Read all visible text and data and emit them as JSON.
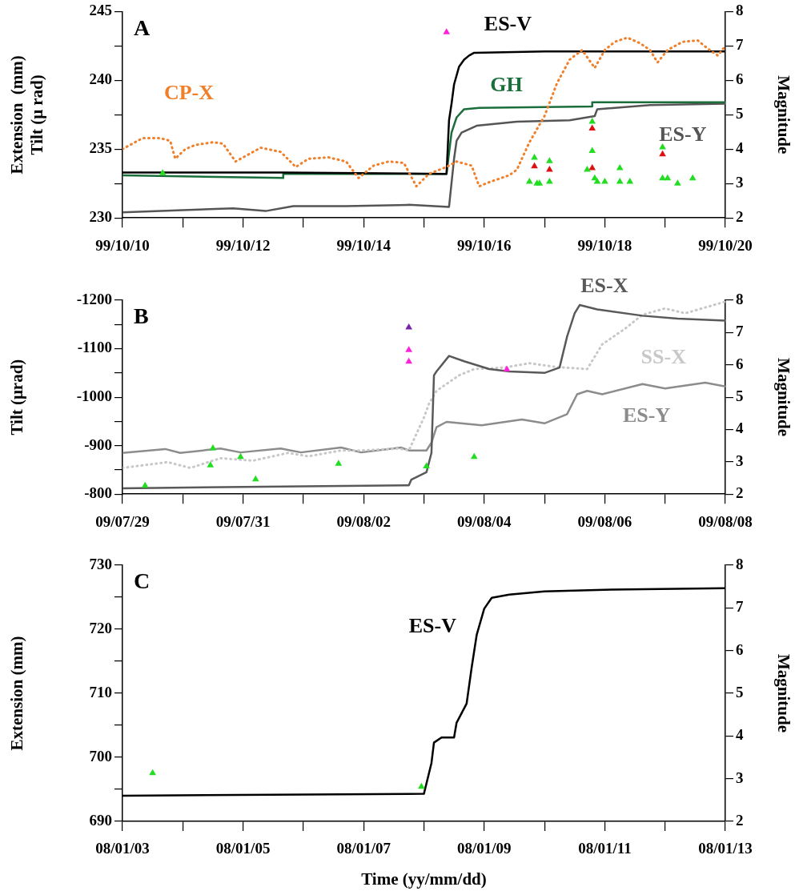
{
  "chart_data": [
    {
      "type": "line",
      "ylabel": "Extension  (mm)\nTilt (μ rad)",
      "y2label": "Magnitude",
      "annotations": [
        "A"
      ],
      "xlim": [
        "--10-10",
        "--10-20"
      ],
      "xticks": [
        {
          "value": "--10-10",
          "label": "99/10/10"
        },
        {
          "value": "--10-11",
          "label": null
        },
        {
          "value": "--10-12",
          "label": "99/10/12"
        },
        {
          "value": "--10-13",
          "label": null
        },
        {
          "value": "--10-14",
          "label": "99/10/14"
        },
        {
          "value": "--10-15",
          "label": null
        },
        {
          "value": "--10-16",
          "label": "99/10/16"
        },
        {
          "value": "--10-17",
          "label": null
        },
        {
          "value": "--10-18",
          "label": "99/10/18"
        },
        {
          "value": "--10-19",
          "label": null
        },
        {
          "value": "--10-20",
          "label": "99/10/20"
        }
      ],
      "ylim": [
        230,
        245
      ],
      "yticks": [
        230,
        {
          "value": 232.5,
          "label": null
        },
        235,
        {
          "value": 237.5,
          "label": null
        },
        240,
        {
          "value": 242.5,
          "label": null
        },
        245
      ],
      "y2lim": [
        2,
        8
      ],
      "y2ticks": [
        2,
        3,
        4,
        5,
        6,
        7,
        8
      ],
      "series": [
        {
          "name": "CP-X",
          "color": "#f07f2a",
          "line_style": "dotted",
          "marker": "none",
          "x": [
            "--10-10T00:00",
            "--10-10T08:00",
            "--10-10T15:00",
            "--10-10T19:00",
            "--10-10T21:00",
            "--10-11T01:00",
            "--10-11T05:00",
            "--10-11T12:00",
            "--10-11T16:00",
            "--10-11T21:00",
            "--10-12T03:00",
            "--10-12T07:00",
            "--10-12T15:00",
            "--10-12T21:00",
            "--10-13T02:00",
            "--10-13T10:00",
            "--10-13T17:00",
            "--10-13T22:00",
            "--10-14T04:00",
            "--10-14T10:00",
            "--10-14T16:00",
            "--10-14T21:00",
            "--10-15T02:00",
            "--10-15T09:00",
            "--10-15T13:00",
            "--10-15T19:00",
            "--10-15T22:00",
            "--10-16T02:00",
            "--10-16T10:00",
            "--10-16T13:00",
            "--10-16T18:00",
            "--10-17T00:00",
            "--10-17T05:00",
            "--10-17T10:00",
            "--10-17T15:00",
            "--10-17T20:00",
            "--10-18T00:00",
            "--10-18T04:00",
            "--10-18T09:00",
            "--10-18T14:00",
            "--10-18T18:00",
            "--10-18T21:00",
            "--10-19T01:00",
            "--10-19T07:00",
            "--10-19T13:00",
            "--10-19T17:00",
            "--10-19T21:00",
            "--10-20T00:00"
          ],
          "values": [
            235.0,
            235.8,
            235.8,
            235.6,
            234.3,
            235.0,
            235.3,
            235.5,
            235.4,
            234.1,
            234.7,
            235.1,
            234.8,
            233.7,
            234.3,
            234.4,
            234.1,
            232.9,
            233.8,
            234.1,
            234.0,
            232.3,
            233.2,
            233.7,
            234.1,
            233.8,
            232.3,
            232.6,
            233.1,
            233.5,
            235.5,
            237.4,
            239.8,
            241.5,
            242.2,
            240.9,
            242.2,
            242.8,
            243.1,
            242.7,
            242.2,
            241.3,
            242.2,
            242.8,
            242.9,
            242.3,
            241.8,
            242.5
          ]
        },
        {
          "name": "ES-V",
          "color": "#000000",
          "marker": "none",
          "x": [
            "--10-10T00:00",
            "--10-12T16:00",
            "--10-15T09:00",
            "--10-15T10:00",
            "--10-15T11:00",
            "--10-15T12:00",
            "--10-15T14:00",
            "--10-15T16:00",
            "--10-15T18:00",
            "--10-15T20:00",
            "--10-17T00:00",
            "--10-20T00:00"
          ],
          "values": [
            233.3,
            233.3,
            233.2,
            237.1,
            238.3,
            239.7,
            241.0,
            241.5,
            241.8,
            242.0,
            242.1,
            242.1
          ]
        },
        {
          "name": "GH",
          "color": "#1a6e3a",
          "marker": "none",
          "x": [
            "--10-10T00:00",
            "--10-12T16:00",
            "--10-12T16:00",
            "--10-15T09:00",
            "--10-15T10:00",
            "--10-15T11:00",
            "--10-15T13:00",
            "--10-15T16:00",
            "--10-15T22:00",
            "--10-17T19:00",
            "--10-17T19:00",
            "--10-20T00:00"
          ],
          "values": [
            233.1,
            232.9,
            233.2,
            233.2,
            234.7,
            236.2,
            237.3,
            237.9,
            238.0,
            238.1,
            238.4,
            238.4
          ]
        },
        {
          "name": "ES-Y",
          "color": "#555555",
          "marker": "none",
          "x": [
            "--10-10T00:00",
            "--10-11T20:00",
            "--10-12T09:00",
            "--10-12T20:00",
            "--10-13T17:00",
            "--10-14T18:00",
            "--10-15T10:00",
            "--10-15T12:00",
            "--10-15T13:00",
            "--10-15T15:00",
            "--10-15T21:00",
            "--10-16T13:00",
            "--10-17T10:00",
            "--10-17T20:00",
            "--10-17T21:00",
            "--10-18T18:00",
            "--10-20T00:00"
          ],
          "values": [
            230.4,
            230.7,
            230.5,
            230.85,
            230.85,
            230.95,
            230.8,
            234.3,
            235.6,
            236.2,
            236.7,
            237.0,
            237.1,
            237.4,
            237.9,
            238.2,
            238.3
          ]
        },
        {
          "type": "scatter",
          "axis": "y2",
          "color": "#22dd22",
          "marker": "triangle",
          "x": [
            "--10-10T16:00",
            "--10-16T18:00",
            "--10-16T20:00",
            "--10-16T21:00",
            "--10-16T22:00",
            "--10-17T02:00",
            "--10-17T02:00",
            "--10-17T17:00",
            "--10-17T19:00",
            "--10-17T19:00",
            "--10-17T20:00",
            "--10-17T21:00",
            "--10-18T00:00",
            "--10-18T06:00",
            "--10-18T06:00",
            "--10-18T10:00",
            "--10-18T23:00",
            "--10-18T23:00",
            "--10-19T01:00",
            "--10-19T05:00",
            "--10-19T11:00"
          ],
          "values": [
            3.3,
            3.05,
            3.75,
            3.0,
            3.0,
            3.65,
            3.05,
            3.4,
            4.8,
            3.95,
            3.15,
            3.05,
            3.05,
            3.45,
            3.05,
            3.05,
            4.05,
            3.15,
            3.15,
            3.0,
            3.15
          ]
        },
        {
          "type": "scatter",
          "axis": "y2",
          "color": "#dd1111",
          "marker": "triangle",
          "x": [
            "--10-16T20:00",
            "--10-17T02:00",
            "--10-17T19:00",
            "--10-17T19:00",
            "--10-18T23:00"
          ],
          "values": [
            3.5,
            3.4,
            4.6,
            3.45,
            3.85
          ]
        },
        {
          "type": "scatter",
          "axis": "y2",
          "color": "#ff22dd",
          "marker": "triangle",
          "x": [
            "--10-15T09:00"
          ],
          "values": [
            7.4
          ]
        }
      ]
    },
    {
      "type": "line",
      "ylabel": "Tilt (μrad)",
      "y2label": "Magnitude",
      "annotations": [
        "B"
      ],
      "xlim": [
        "--07-29",
        "--08-08"
      ],
      "xticks": [
        {
          "value": "--07-29",
          "label": "09/07/29"
        },
        {
          "value": "--07-30",
          "label": null
        },
        {
          "value": "--07-31",
          "label": "09/07/31"
        },
        {
          "value": "--08-01",
          "label": null
        },
        {
          "value": "--08-02",
          "label": "09/08/02"
        },
        {
          "value": "--08-03",
          "label": null
        },
        {
          "value": "--08-04",
          "label": "09/08/04"
        },
        {
          "value": "--08-05",
          "label": null
        },
        {
          "value": "--08-06",
          "label": "09/08/06"
        },
        {
          "value": "--08-07",
          "label": null
        },
        {
          "value": "--08-08",
          "label": "09/08/08"
        }
      ],
      "ylim": [
        -800,
        -1200
      ],
      "yticks": [
        -800,
        {
          "value": -850,
          "label": null
        },
        -900,
        {
          "value": -950,
          "label": null
        },
        -1000,
        {
          "value": -1050,
          "label": null
        },
        -1100,
        {
          "value": -1150,
          "label": null
        },
        -1200
      ],
      "y2lim": [
        2,
        8
      ],
      "y2ticks": [
        2,
        3,
        4,
        5,
        6,
        7,
        8
      ],
      "series": [
        {
          "name": "ES-X",
          "color": "#595959",
          "marker": "none",
          "x": [
            "--07-29T00:00",
            "--08-01T00:00",
            "--08-02T17:00",
            "--08-02T18:00",
            "--08-02T19:00",
            "--08-03T01:00",
            "--08-03T03:00",
            "--08-03T04:00",
            "--08-03T05:00",
            "--08-03T10:00",
            "--08-03T16:00",
            "--08-04T02:00",
            "--08-04T10:00",
            "--08-05T00:00",
            "--08-05T06:00",
            "--08-05T09:00",
            "--08-05T12:00",
            "--08-05T14:00",
            "--08-05T21:00",
            "--08-06T15:00",
            "--08-07T05:00",
            "--08-08T00:00"
          ],
          "values": [
            -812,
            -816,
            -818,
            -818,
            -830,
            -845,
            -885,
            -1045,
            -1053,
            -1085,
            -1074,
            -1058,
            -1053,
            -1050,
            -1061,
            -1125,
            -1173,
            -1190,
            -1181,
            -1168,
            -1162,
            -1158
          ]
        },
        {
          "name": "SS-X",
          "color": "#c8c8c8",
          "line_style": "dotted",
          "marker": "none",
          "x": [
            "--07-29T00:00",
            "--07-29T18:00",
            "--07-30T03:00",
            "--07-30T15:00",
            "--07-31T04:00",
            "--07-31T18:00",
            "--08-01T02:00",
            "--08-01T15:00",
            "--08-01T23:00",
            "--08-02T14:00",
            "--08-02T18:00",
            "--08-03T00:00",
            "--08-03T02:00",
            "--08-03T05:00",
            "--08-03T14:00",
            "--08-03T20:00",
            "--08-04T08:00",
            "--08-04T18:00",
            "--08-05T05:00",
            "--08-05T17:00",
            "--08-05T23:00",
            "--08-06T08:00",
            "--08-06T15:00",
            "--08-07T00:00",
            "--08-07T08:00",
            "--08-08T00:00"
          ],
          "values": [
            -854,
            -866,
            -854,
            -874,
            -869,
            -885,
            -878,
            -890,
            -890,
            -894,
            -890,
            -958,
            -986,
            -1013,
            -1045,
            -1058,
            -1061,
            -1070,
            -1062,
            -1058,
            -1109,
            -1141,
            -1170,
            -1183,
            -1173,
            -1197
          ]
        },
        {
          "name": "ES-Y",
          "color": "#8c8c8c",
          "marker": "none",
          "x": [
            "--07-29T00:00",
            "--07-29T17:00",
            "--07-29T23:00",
            "--07-30T15:00",
            "--07-30T23:00",
            "--07-31T15:00",
            "--07-31T23:00",
            "--08-01T15:00",
            "--08-01T23:00",
            "--08-02T15:00",
            "--08-02T18:00",
            "--08-03T01:00",
            "--08-03T03:00",
            "--08-03T05:00",
            "--08-03T09:00",
            "--08-03T23:00",
            "--08-04T15:00",
            "--08-05T00:00",
            "--08-05T09:00",
            "--08-05T13:00",
            "--08-05T17:00",
            "--08-05T23:00",
            "--08-06T15:00",
            "--08-07T00:00",
            "--08-07T16:00",
            "--08-08T00:00"
          ],
          "values": [
            -885,
            -893,
            -885,
            -894,
            -886,
            -894,
            -886,
            -896,
            -886,
            -896,
            -890,
            -890,
            -906,
            -938,
            -949,
            -942,
            -954,
            -946,
            -965,
            -1006,
            -1013,
            -1006,
            -1027,
            -1018,
            -1030,
            -1022
          ]
        },
        {
          "type": "scatter",
          "axis": "y2",
          "color": "#22dd22",
          "marker": "triangle",
          "x": [
            "--07-29T09:00",
            "--07-30T11:00",
            "--07-30T12:00",
            "--07-30T23:00",
            "--07-31T05:00",
            "--08-01T14:00",
            "--08-03T01:00",
            "--08-03T20:00"
          ],
          "values": [
            2.26,
            2.89,
            3.42,
            3.15,
            2.46,
            2.94,
            2.86,
            3.15
          ]
        },
        {
          "type": "scatter",
          "axis": "y2",
          "color": "#ff22dd",
          "marker": "triangle",
          "x": [
            "--08-02T18:00",
            "--08-02T18:00",
            "--08-04T09:00"
          ],
          "values": [
            6.1,
            6.46,
            5.86
          ]
        },
        {
          "type": "scatter",
          "axis": "y2",
          "color": "#7a22a8",
          "marker": "triangle",
          "x": [
            "--08-02T18:00"
          ],
          "values": [
            7.16
          ]
        }
      ]
    },
    {
      "type": "line",
      "xlabel": "Time (yy/mm/dd)",
      "ylabel": "Extension (mm)",
      "y2label": "Magnitude",
      "annotations": [
        "C"
      ],
      "xlim": [
        "--01-03",
        "--01-13"
      ],
      "xticks": [
        {
          "value": "--01-03",
          "label": "08/01/03"
        },
        {
          "value": "--01-04",
          "label": null
        },
        {
          "value": "--01-05",
          "label": "08/01/05"
        },
        {
          "value": "--01-06",
          "label": null
        },
        {
          "value": "--01-07",
          "label": "08/01/07"
        },
        {
          "value": "--01-08",
          "label": null
        },
        {
          "value": "--01-09",
          "label": "08/01/09"
        },
        {
          "value": "--01-10",
          "label": null
        },
        {
          "value": "--01-11",
          "label": "08/01/11"
        },
        {
          "value": "--01-12",
          "label": null
        },
        {
          "value": "--01-13",
          "label": "08/01/13"
        }
      ],
      "ylim": [
        690,
        730
      ],
      "yticks": [
        690,
        {
          "value": 695,
          "label": null
        },
        700,
        {
          "value": 705,
          "label": null
        },
        710,
        {
          "value": 715,
          "label": null
        },
        720,
        {
          "value": 725,
          "label": null
        },
        730
      ],
      "y2lim": [
        2,
        8
      ],
      "y2ticks": [
        2,
        3,
        4,
        5,
        6,
        7,
        8
      ],
      "series": [
        {
          "name": "ES-V",
          "color": "#000000",
          "marker": "none",
          "x": [
            "--01-03T00:00",
            "--01-08T00:00",
            "--01-08T03:00",
            "--01-08T04:00",
            "--01-08T07:00",
            "--01-08T12:00",
            "--01-08T13:00",
            "--01-08T17:00",
            "--01-08T19:00",
            "--01-08T21:00",
            "--01-09T00:00",
            "--01-09T03:00",
            "--01-09T10:00",
            "--01-10T00:00",
            "--01-11T03:00",
            "--01-13T00:00"
          ],
          "values": [
            694.0,
            694.3,
            699.1,
            702.3,
            703.1,
            703.1,
            705.4,
            708.4,
            714.0,
            719.1,
            723.2,
            724.9,
            725.4,
            725.9,
            726.2,
            726.4
          ]
        },
        {
          "type": "scatter",
          "axis": "y2",
          "color": "#22dd22",
          "marker": "triangle",
          "x": [
            "--01-03T12:00",
            "--01-07T23:00"
          ],
          "values": [
            3.13,
            2.81
          ]
        }
      ]
    }
  ]
}
